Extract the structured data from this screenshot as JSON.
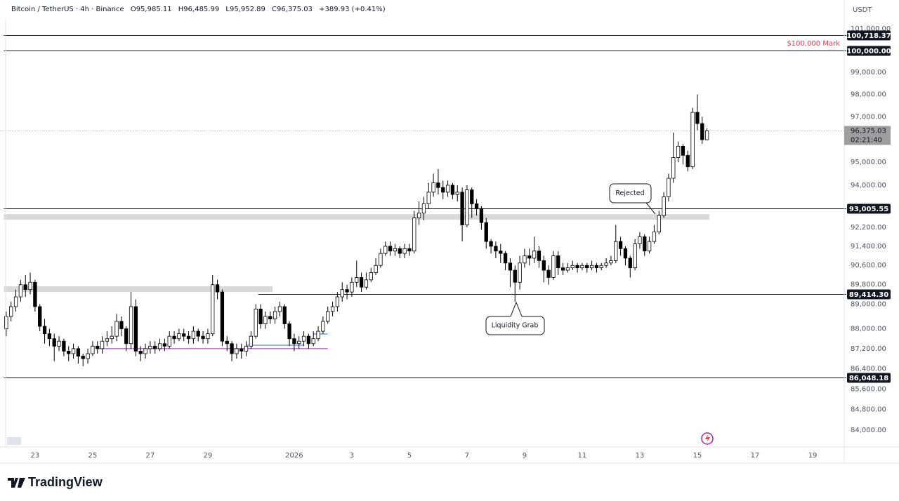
{
  "chart_data": {
    "type": "candlestick",
    "legend": {
      "symbol": "Bitcoin / TetherUS · 4h · Binance",
      "items": [
        "O95,985.11",
        "H96,485.99",
        "L95,952.89",
        "C96,375.03"
      ],
      "change": "+389.93 (+0.41%)"
    },
    "currency": "USDT",
    "annotations": [
      "$100,000 Mark",
      "Rejected",
      "Liquidity Grab"
    ],
    "log_scale": true,
    "grid": false,
    "up_color": "#ffffff",
    "down_color": "#000000",
    "wick_color": "#000000",
    "ylim": [
      83376,
      102348
    ],
    "yticks": [
      {
        "value": 101000,
        "label": "101,000.00"
      },
      {
        "value": 99000,
        "label": "99,000.00"
      },
      {
        "value": 98000,
        "label": "98,000.00"
      },
      {
        "value": 97000,
        "label": "97,000.00"
      },
      {
        "value": 95000,
        "label": "95,000.00"
      },
      {
        "value": 94000,
        "label": "94,000.00"
      },
      {
        "value": 92200,
        "label": "92,200.00"
      },
      {
        "value": 91400,
        "label": "91,400.00"
      },
      {
        "value": 90600,
        "label": "90,600.00"
      },
      {
        "value": 89800,
        "label": "89,800.00"
      },
      {
        "value": 89000,
        "label": "89,000.00"
      },
      {
        "value": 88000,
        "label": "88,000.00"
      },
      {
        "value": 87200,
        "label": "87,200.00"
      },
      {
        "value": 86400,
        "label": "86,400.00"
      },
      {
        "value": 85600,
        "label": "85,600.00"
      },
      {
        "value": 84800,
        "label": "84,800.00"
      },
      {
        "value": 84000,
        "label": "84,000.00"
      }
    ],
    "xlim": [
      -1.3,
      174.3
    ],
    "xticks": [
      {
        "value": 6,
        "label": "23"
      },
      {
        "value": 18,
        "label": "25"
      },
      {
        "value": 30,
        "label": "27"
      },
      {
        "value": 42,
        "label": "29"
      },
      {
        "value": 60,
        "label": "2026"
      },
      {
        "value": 72,
        "label": "3"
      },
      {
        "value": 84,
        "label": "5"
      },
      {
        "value": 96,
        "label": "7"
      },
      {
        "value": 108,
        "label": "9"
      },
      {
        "value": 120,
        "label": "11"
      },
      {
        "value": 132,
        "label": "13"
      },
      {
        "value": 144,
        "label": "15"
      },
      {
        "value": 156,
        "label": "17"
      },
      {
        "value": 168,
        "label": "19"
      }
    ],
    "open": [
      88000,
      88500,
      88900,
      89300,
      89800,
      89600,
      89900,
      88900,
      88100,
      87800,
      87600,
      87300,
      87500,
      87100,
      87000,
      87200,
      86900,
      86800,
      87000,
      87300,
      87200,
      87500,
      87600,
      87700,
      88300,
      88000,
      87400,
      88900,
      87100,
      87000,
      87200,
      87300,
      87200,
      87400,
      87300,
      87700,
      87600,
      87800,
      87700,
      87600,
      87900,
      87700,
      87600,
      87800,
      89800,
      89500,
      87500,
      87400,
      87000,
      87200,
      87100,
      87300,
      87700,
      88800,
      88200,
      88500,
      88400,
      88700,
      88900,
      88200,
      87600,
      87400,
      87500,
      87700,
      87400,
      87600,
      87900,
      88300,
      88700,
      88900,
      89300,
      89600,
      89500,
      89900,
      90100,
      89700,
      90000,
      90300,
      90600,
      91100,
      91400,
      91200,
      91300,
      91100,
      91300,
      91200,
      92600,
      92800,
      93200,
      93700,
      94100,
      93900,
      93700,
      94000,
      93600,
      93700,
      92300,
      93800,
      93200,
      93000,
      92400,
      91600,
      91400,
      91200,
      91100,
      90700,
      90400,
      89900,
      90700,
      91000,
      90900,
      91200,
      90800,
      90400,
      90100,
      91000,
      90500,
      90400,
      90500,
      90600,
      90500,
      90600,
      90500,
      90600,
      90500,
      90600,
      90700,
      90800,
      91600,
      91300,
      90900,
      90500,
      91500,
      91800,
      91200,
      91600,
      92000,
      92700,
      93500,
      94300,
      95200,
      95700,
      95300,
      94800,
      97200,
      96700,
      95985.11
    ],
    "high": [
      88700,
      89100,
      89600,
      90000,
      90200,
      90300,
      90000,
      89000,
      88400,
      88000,
      87800,
      87700,
      87600,
      87300,
      87400,
      87300,
      87000,
      87200,
      87500,
      87500,
      87700,
      87900,
      88100,
      88600,
      88500,
      88100,
      89500,
      89200,
      87300,
      87400,
      87500,
      87500,
      87600,
      87600,
      87900,
      87900,
      88000,
      88000,
      87900,
      88100,
      88000,
      87900,
      88000,
      90200,
      90000,
      89600,
      87700,
      87500,
      87400,
      87400,
      87500,
      87900,
      89000,
      89000,
      88700,
      88700,
      88900,
      89100,
      89000,
      88300,
      87800,
      87700,
      87900,
      87800,
      87900,
      88100,
      88500,
      88900,
      89100,
      89500,
      89900,
      89800,
      90100,
      90800,
      90300,
      90300,
      90500,
      90900,
      91300,
      91600,
      91600,
      91500,
      91400,
      91500,
      91500,
      92900,
      93300,
      93500,
      94100,
      94500,
      94700,
      94200,
      94200,
      94100,
      94000,
      93900,
      94000,
      93900,
      93400,
      93100,
      92600,
      91700,
      91600,
      91500,
      91200,
      90900,
      90600,
      91000,
      91300,
      91300,
      91800,
      91400,
      91000,
      90600,
      91200,
      91200,
      90700,
      90700,
      90800,
      90700,
      90700,
      90700,
      90800,
      90700,
      90700,
      90900,
      91000,
      92300,
      91800,
      91400,
      91000,
      91700,
      92000,
      91900,
      91800,
      92300,
      92900,
      93700,
      94500,
      96300,
      95900,
      95800,
      95500,
      97400,
      98000,
      97000,
      96485.99
    ],
    "low": [
      87700,
      88300,
      88700,
      89100,
      89300,
      89400,
      88700,
      87900,
      87400,
      87300,
      86700,
      87100,
      86900,
      86700,
      86800,
      86600,
      86500,
      86600,
      86900,
      87000,
      87000,
      87300,
      87400,
      87500,
      87700,
      87100,
      87200,
      86900,
      86700,
      86800,
      87000,
      87000,
      87100,
      87100,
      87200,
      87400,
      87500,
      87500,
      87400,
      87400,
      87500,
      87400,
      87400,
      87700,
      89200,
      87300,
      87100,
      86700,
      86800,
      86800,
      86900,
      87200,
      87600,
      88000,
      88000,
      88200,
      88200,
      88500,
      88000,
      87300,
      87100,
      87200,
      87300,
      87200,
      87300,
      87500,
      87800,
      88200,
      88500,
      88700,
      89100,
      89200,
      89300,
      89700,
      89500,
      89600,
      89900,
      90200,
      90500,
      91000,
      91000,
      91000,
      90900,
      90900,
      91000,
      91100,
      92300,
      92500,
      93000,
      93500,
      93600,
      93400,
      93500,
      93400,
      93300,
      91600,
      92200,
      92600,
      92700,
      92100,
      91300,
      91100,
      90900,
      90700,
      90400,
      89700,
      89100,
      89600,
      90500,
      90600,
      90700,
      90500,
      89900,
      89800,
      90000,
      90200,
      90200,
      90300,
      90400,
      90300,
      90400,
      90300,
      90400,
      90300,
      90400,
      90500,
      90600,
      90700,
      91000,
      90600,
      90100,
      90400,
      91300,
      91000,
      91100,
      91500,
      91900,
      92600,
      93300,
      94100,
      95000,
      94900,
      94600,
      94700,
      96400,
      95800,
      95952.89
    ],
    "close": [
      88500,
      88900,
      89300,
      89800,
      89600,
      89900,
      88900,
      88100,
      87800,
      87600,
      87300,
      87500,
      87100,
      87000,
      87200,
      86900,
      86800,
      87000,
      87300,
      87200,
      87500,
      87600,
      87700,
      88300,
      88000,
      87400,
      88900,
      87100,
      87000,
      87200,
      87300,
      87200,
      87400,
      87300,
      87700,
      87600,
      87800,
      87700,
      87600,
      87900,
      87700,
      87600,
      87800,
      89800,
      89500,
      87500,
      87400,
      87000,
      87200,
      87100,
      87300,
      87700,
      88800,
      88200,
      88500,
      88400,
      88700,
      88900,
      88200,
      87600,
      87400,
      87500,
      87700,
      87400,
      87600,
      87900,
      88300,
      88700,
      88900,
      89300,
      89600,
      89500,
      89900,
      90100,
      89700,
      90000,
      90300,
      90600,
      91100,
      91400,
      91200,
      91300,
      91100,
      91300,
      91200,
      92600,
      92800,
      93200,
      93700,
      94100,
      93900,
      93700,
      94000,
      93600,
      93700,
      92300,
      93800,
      93200,
      93000,
      92400,
      91600,
      91400,
      91200,
      91100,
      90700,
      90400,
      89900,
      90700,
      91000,
      90900,
      91200,
      90800,
      90400,
      90100,
      91000,
      90500,
      90400,
      90500,
      90600,
      90500,
      90600,
      90500,
      90600,
      90500,
      90600,
      90700,
      90800,
      91600,
      91300,
      90900,
      90500,
      91500,
      91800,
      91200,
      91600,
      92000,
      92700,
      93500,
      94300,
      95200,
      95700,
      95300,
      94800,
      97200,
      96700,
      95985.11,
      96375.03
    ],
    "levels": [
      {
        "value": 100718.37,
        "label": "100,718.37",
        "start": 0
      },
      {
        "value": 100000,
        "label": "100,000.00",
        "start": 0
      },
      {
        "value": 93005.55,
        "label": "93,005.55",
        "start": 0
      },
      {
        "value": 89414.3,
        "label": "89,414.30",
        "start": 53
      },
      {
        "value": 86048.18,
        "label": "86,048.18",
        "start": 0
      }
    ],
    "zones": [
      {
        "low": 92520,
        "high": 92760,
        "start": 0,
        "end": 146
      },
      {
        "low": 89500,
        "high": 89736,
        "start": 0,
        "end": 55
      }
    ],
    "segments": [
      {
        "value": 87200,
        "start": 19,
        "end": 67,
        "color": "#9c27b0"
      },
      {
        "value": 87337,
        "start": 50,
        "end": 62,
        "color": "#2962ff"
      },
      {
        "value": 87790,
        "start": 64,
        "end": 67,
        "color": "#2962ff"
      }
    ],
    "last_price": {
      "value": 96375.03,
      "label": "96,375.03"
    },
    "countdown": "02:21:40"
  },
  "brand": "TradingView"
}
